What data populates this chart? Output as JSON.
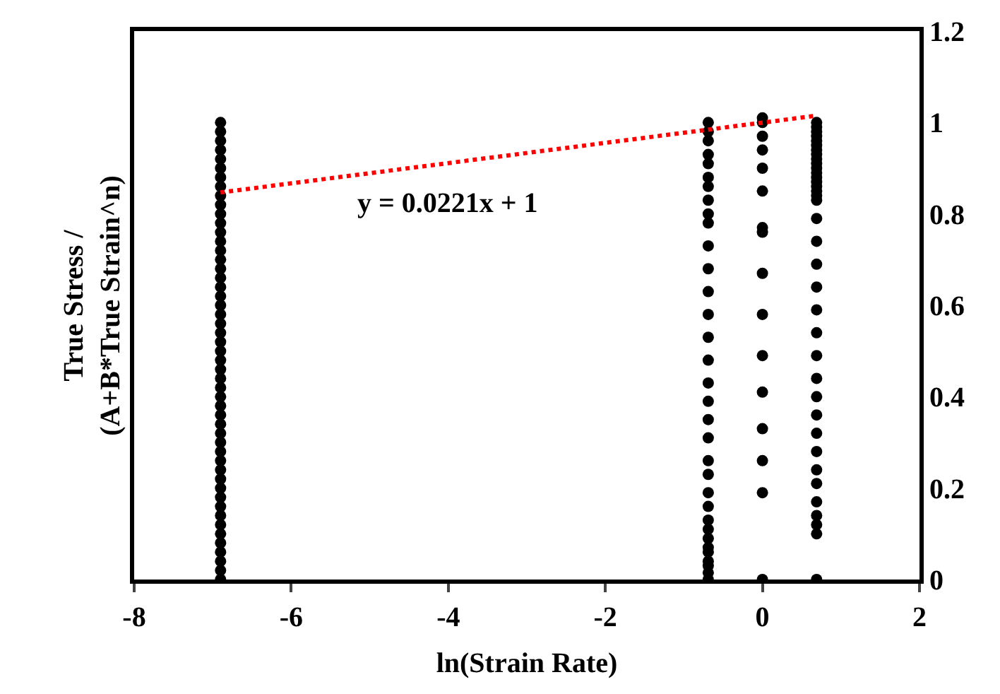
{
  "chart_data": {
    "type": "scatter",
    "xlabel": "ln(Strain Rate)",
    "ylabel": "True Stress /\n(A+B*True Strain^n)",
    "xlim": [
      -8,
      2
    ],
    "xticks": [
      -8,
      -6,
      -4,
      -2,
      0,
      2
    ],
    "ylim": [
      0,
      1.2
    ],
    "yticks": [
      0,
      0.2,
      0.4,
      0.6,
      0.8,
      1,
      1.2
    ],
    "marker": "circle",
    "annotations": [
      "y = 0.0221x + 1"
    ],
    "series": [
      {
        "color": "#000000",
        "x": [
          -6.9,
          -6.9,
          -6.9,
          -6.9,
          -6.9,
          -6.9,
          -6.9,
          -6.9,
          -6.9,
          -6.9,
          -6.9,
          -6.9,
          -6.9,
          -6.9,
          -6.9,
          -6.9,
          -6.9,
          -6.9,
          -6.9,
          -6.9,
          -6.9,
          -6.9,
          -6.9,
          -6.9,
          -6.9,
          -6.9,
          -6.9,
          -6.9,
          -6.9,
          -6.9,
          -6.9,
          -6.9,
          -6.9,
          -6.9,
          -6.9,
          -6.9,
          -6.9,
          -6.9,
          -6.9,
          -6.9,
          -6.9,
          -6.9,
          -6.9,
          -6.9,
          -6.9,
          -6.9,
          -6.9,
          -6.9,
          -6.9,
          -6.9,
          -6.9,
          -0.69,
          -0.69,
          -0.69,
          -0.69,
          -0.69,
          -0.69,
          -0.69,
          -0.69,
          -0.69,
          -0.69,
          -0.69,
          -0.69,
          -0.69,
          -0.69,
          -0.69,
          -0.69,
          -0.69,
          -0.69,
          -0.69,
          -0.69,
          -0.69,
          -0.69,
          -0.69,
          -0.69,
          -0.69,
          -0.69,
          -0.69,
          -0.69,
          -0.69,
          -0.69,
          -0.69,
          -0.69,
          -0.69,
          0,
          0,
          0,
          0,
          0,
          0,
          0,
          0,
          0,
          0,
          0,
          0,
          0,
          0,
          0,
          0,
          0.69,
          0.69,
          0.69,
          0.69,
          0.69,
          0.69,
          0.69,
          0.69,
          0.69,
          0.69,
          0.69,
          0.69,
          0.69,
          0.69,
          0.69,
          0.69,
          0.69,
          0.69,
          0.69,
          0.69,
          0.69,
          0.69,
          0.69,
          0.69,
          0.69,
          0.69,
          0.69,
          0.69,
          0.69,
          0.69,
          0.69,
          0.69,
          0.69,
          0.69,
          0.69,
          0.69,
          0.69
        ],
        "values": [
          0,
          0.02,
          0.04,
          0.06,
          0.08,
          0.1,
          0.12,
          0.14,
          0.16,
          0.18,
          0.2,
          0.22,
          0.24,
          0.26,
          0.28,
          0.3,
          0.32,
          0.34,
          0.36,
          0.38,
          0.4,
          0.42,
          0.44,
          0.46,
          0.48,
          0.5,
          0.52,
          0.54,
          0.56,
          0.58,
          0.6,
          0.62,
          0.64,
          0.66,
          0.68,
          0.7,
          0.72,
          0.74,
          0.76,
          0.78,
          0.8,
          0.82,
          0.84,
          0.86,
          0.88,
          0.9,
          0.92,
          0.94,
          0.96,
          0.98,
          1.0,
          1.0,
          0.98,
          0.96,
          0.93,
          0.91,
          0.88,
          0.86,
          0.83,
          0.8,
          0.78,
          0.73,
          0.68,
          0.63,
          0.58,
          0.53,
          0.48,
          0.43,
          0.39,
          0.35,
          0.31,
          0.26,
          0.23,
          0.19,
          0.16,
          0.13,
          0.11,
          0.09,
          0.07,
          0.06,
          0.04,
          0.03,
          0.015,
          0,
          1.01,
          1.0,
          0.97,
          0.94,
          0.9,
          0.85,
          0.77,
          0.76,
          0.67,
          0.58,
          0.49,
          0.41,
          0.33,
          0.26,
          0.19,
          0,
          1.0,
          0.99,
          0.98,
          0.97,
          0.96,
          0.95,
          0.94,
          0.93,
          0.92,
          0.91,
          0.9,
          0.89,
          0.88,
          0.87,
          0.86,
          0.85,
          0.84,
          0.83,
          0.79,
          0.74,
          0.69,
          0.64,
          0.59,
          0.54,
          0.49,
          0.44,
          0.4,
          0.36,
          0.32,
          0.28,
          0.24,
          0.21,
          0.17,
          0.14,
          0.12,
          0.1,
          0
        ]
      },
      {
        "type": "line",
        "color": "#ff0000",
        "line_style": "dotted",
        "marker": "none",
        "x": [
          -6.9,
          0.69
        ],
        "values": [
          0.847,
          1.015
        ]
      }
    ]
  }
}
